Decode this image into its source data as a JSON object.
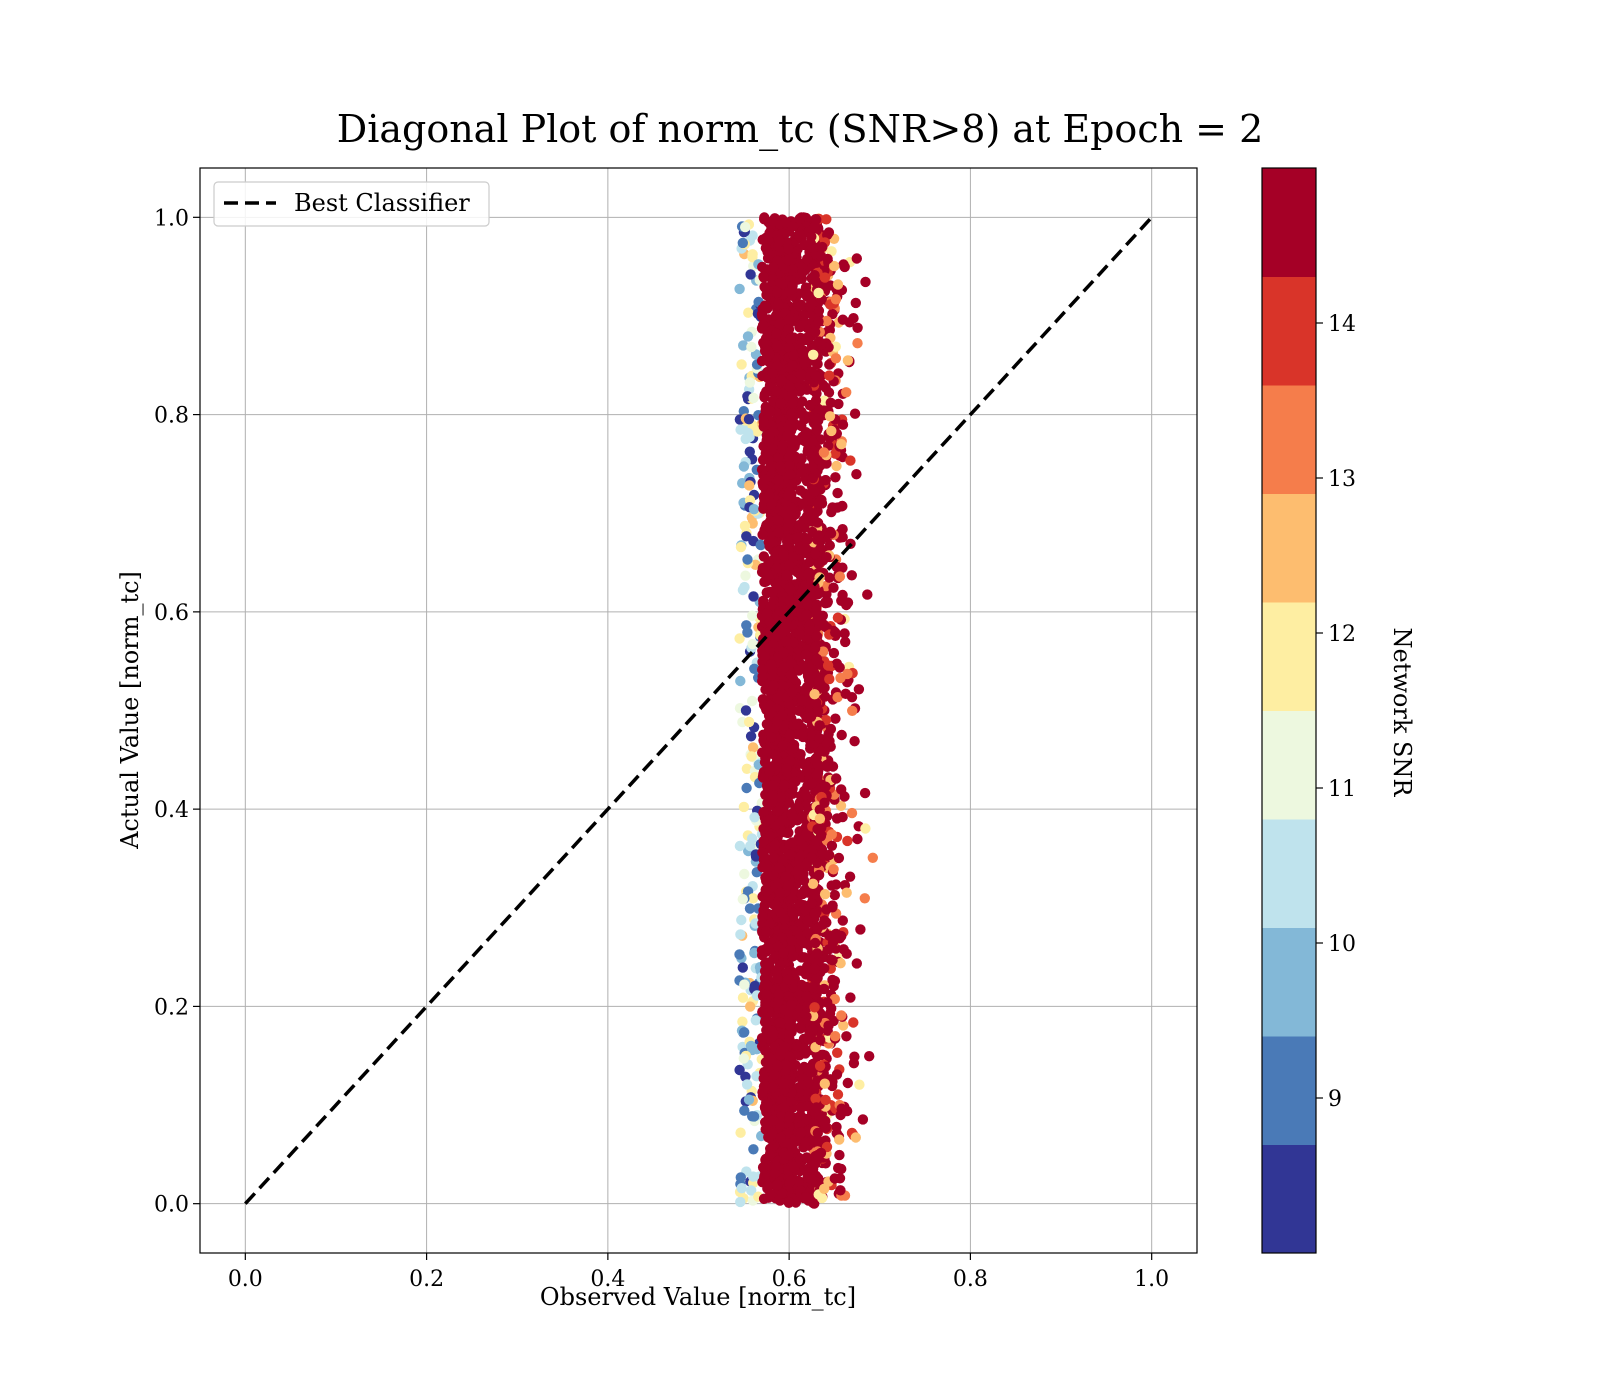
{
  "chart_data": {
    "type": "scatter",
    "title": "Diagonal Plot of norm_tc (SNR>8) at Epoch = 2",
    "xlabel": "Observed Value [norm_tc]",
    "ylabel": "Actual Value [norm_tc]",
    "xlim": [
      -0.05,
      1.05
    ],
    "ylim": [
      -0.05,
      1.05
    ],
    "xticks": [
      "0.0",
      "0.2",
      "0.4",
      "0.6",
      "0.8",
      "1.0"
    ],
    "yticks": [
      "0.0",
      "0.2",
      "0.4",
      "0.6",
      "0.8",
      "1.0"
    ],
    "grid": true,
    "legend": {
      "placement": "top-left",
      "entries": [
        "Best Classifier"
      ]
    },
    "reference_line": {
      "name": "Best Classifier",
      "x": [
        0.0,
        1.0
      ],
      "y": [
        0.0,
        1.0
      ],
      "style": "dashed",
      "color": "#000000"
    },
    "scatter_summary": {
      "x_center": 0.595,
      "x_core_range": [
        0.565,
        0.63
      ],
      "x_outer_range": [
        0.545,
        0.72
      ],
      "y_range": [
        0.0,
        1.0
      ],
      "color_by": "Network SNR"
    },
    "colorbar": {
      "label": "Network SNR",
      "range": [
        8,
        15
      ],
      "ticks": [
        "9",
        "10",
        "11",
        "12",
        "13",
        "14"
      ],
      "tick_values": [
        9,
        10,
        11,
        12,
        13,
        14
      ],
      "colors": [
        "#313695",
        "#4a7ab7",
        "#83b8d7",
        "#bfe3ed",
        "#edf8df",
        "#feeea2",
        "#fdbd6f",
        "#f57d4b",
        "#d93429",
        "#a50026"
      ]
    }
  }
}
